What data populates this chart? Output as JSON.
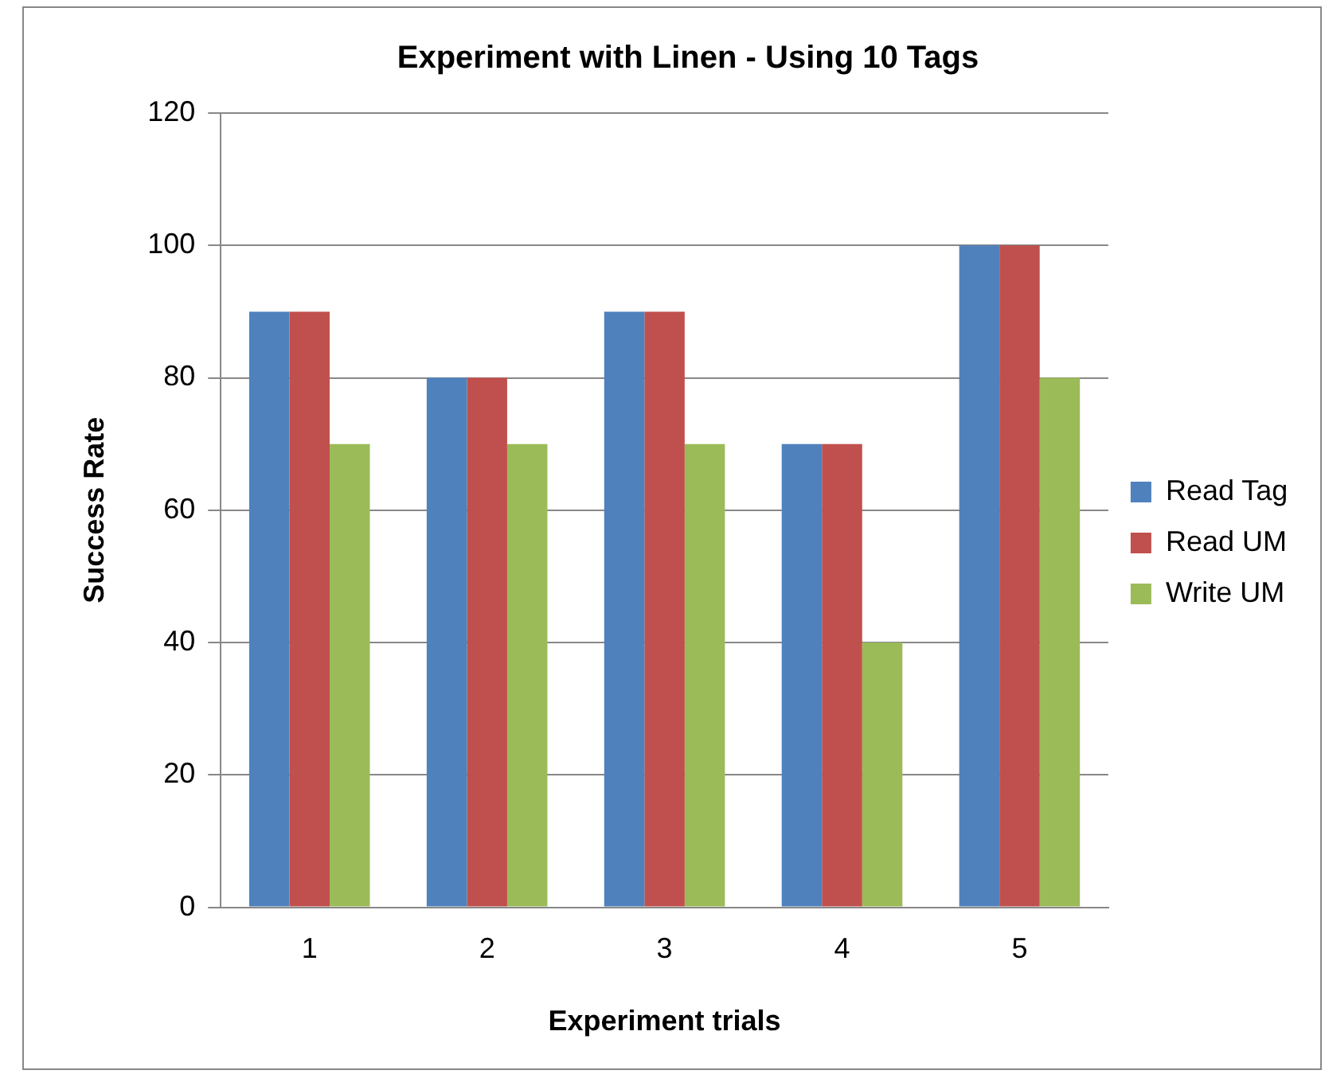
{
  "chart_data": {
    "type": "bar",
    "title": "Experiment with Linen - Using 10 Tags",
    "xlabel": "Experiment trials",
    "ylabel": "Success Rate",
    "categories": [
      "1",
      "2",
      "3",
      "4",
      "5"
    ],
    "series": [
      {
        "name": "Read Tag",
        "color": "#4f81bd",
        "values": [
          90,
          80,
          90,
          70,
          100
        ]
      },
      {
        "name": "Read UM",
        "color": "#c0504d",
        "values": [
          90,
          80,
          90,
          70,
          100
        ]
      },
      {
        "name": "Write UM",
        "color": "#9bbb59",
        "values": [
          70,
          70,
          70,
          40,
          80
        ]
      }
    ],
    "ylim": [
      0,
      120
    ],
    "yticks": [
      0,
      20,
      40,
      60,
      80,
      100,
      120
    ],
    "grid": "y",
    "legend": "right"
  }
}
